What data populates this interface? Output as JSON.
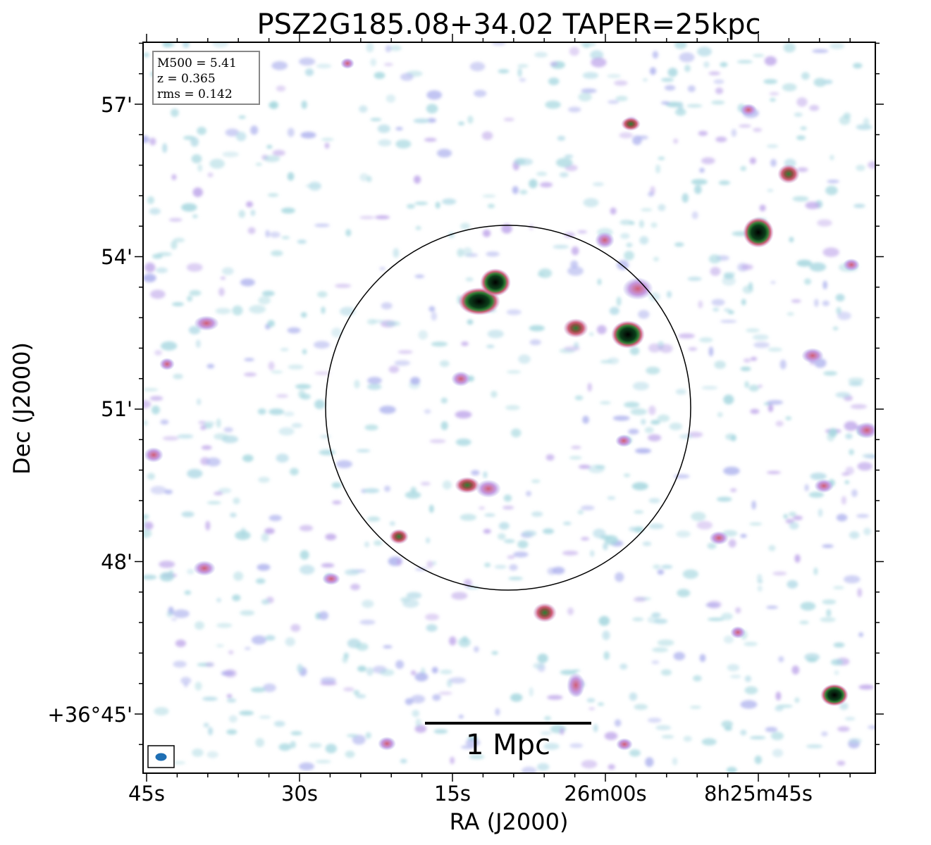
{
  "title": "PSZ2G185.08+34.02 TAPER=25kpc",
  "xlabel": "RA (J2000)",
  "ylabel": "Dec (J2000)",
  "x_ticks": [
    "45s",
    "30s",
    "15s",
    "26m00s",
    "8h25m45s"
  ],
  "y_ticks": [
    "57'",
    "54'",
    "51'",
    "48'",
    "+36°45'"
  ],
  "info_box": {
    "line1": "M500 = 5.41",
    "line2": "z = 0.365",
    "line3": "rms = 0.142"
  },
  "scalebar_label": "1 Mpc",
  "colors": {
    "noise_low": "#a8d8e0",
    "noise_mid": "#b0b4ee",
    "source_faint": "#c8a0e0",
    "source_mid": "#d0607a",
    "source_bright": "#2e7d32",
    "source_core": "#000000",
    "beam": "#1f6fb4"
  }
}
